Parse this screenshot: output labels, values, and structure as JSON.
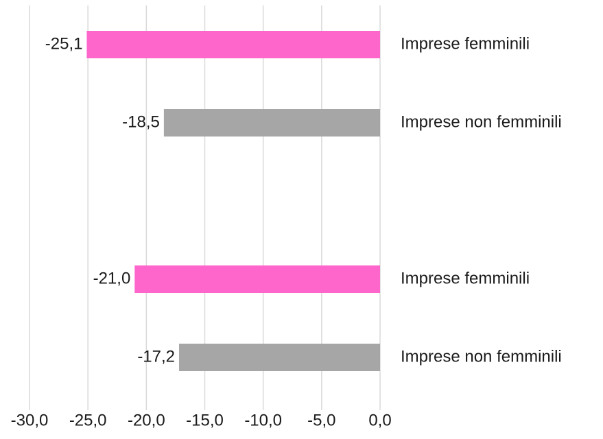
{
  "chart_data": {
    "type": "bar",
    "orientation": "horizontal",
    "title": "",
    "xlabel": "",
    "ylabel": "",
    "xlim": [
      -30,
      0
    ],
    "x_ticks": [
      -30,
      -25,
      -20,
      -15,
      -10,
      -5,
      0
    ],
    "x_tick_labels": [
      "-30,0",
      "-25,0",
      "-20,0",
      "-15,0",
      "-10,0",
      "-5,0",
      "0,0"
    ],
    "grid": "vertical",
    "legend": "none",
    "bars": [
      {
        "category": "Imprese femminili",
        "value": -25.1,
        "label": "-25,1",
        "group": 1,
        "color": "#ff66cc"
      },
      {
        "category": "Imprese non femminili",
        "value": -18.5,
        "label": "-18,5",
        "group": 1,
        "color": "#a6a6a6"
      },
      {
        "category": "Imprese femminili",
        "value": -21.0,
        "label": "-21,0",
        "group": 2,
        "color": "#ff66cc"
      },
      {
        "category": "Imprese non femminili",
        "value": -17.2,
        "label": "-17,2",
        "group": 2,
        "color": "#a6a6a6"
      }
    ]
  }
}
